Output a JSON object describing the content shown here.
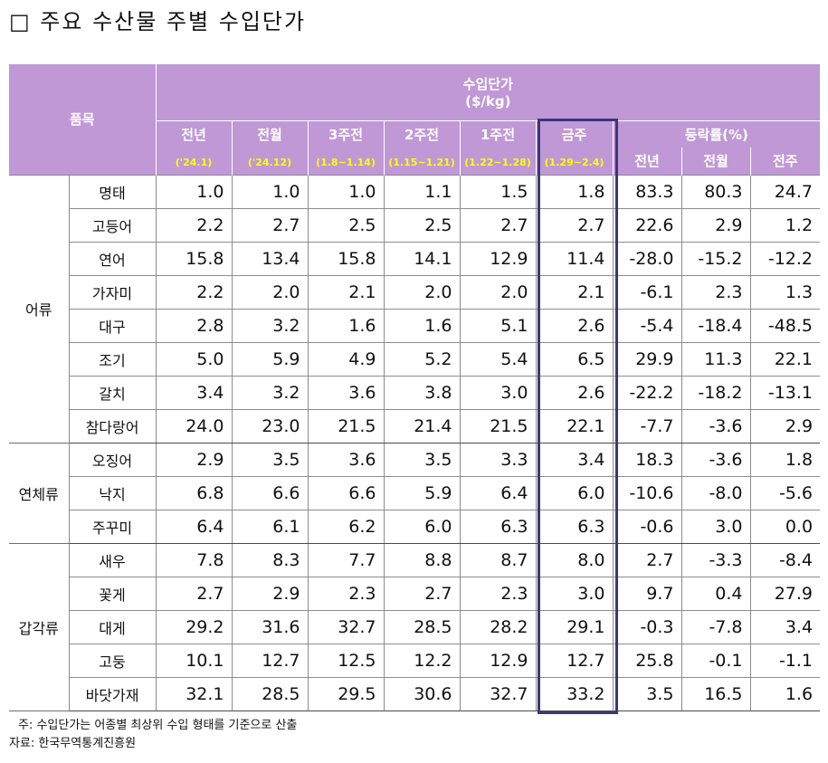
{
  "title": "□ 주요 수산물 주별 수입단가",
  "header": {
    "item": "품목",
    "price_group": "수입단가",
    "price_unit": "($/kg)",
    "cols": [
      {
        "label": "전년",
        "period": "('24.1)"
      },
      {
        "label": "전월",
        "period": "('24.12)"
      },
      {
        "label": "3주전",
        "period": "(1.8~1.14)"
      },
      {
        "label": "2주전",
        "period": "(1.15~1.21)"
      },
      {
        "label": "1주전",
        "period": "(1.22~1.28)"
      },
      {
        "label": "금주",
        "period": "(1.29~2.4)"
      }
    ],
    "change_group": "등락률(%)",
    "change_cols": [
      "전년",
      "전월",
      "전주"
    ]
  },
  "groups": [
    {
      "name": "어류",
      "rows": [
        {
          "item": "명태",
          "values": [
            "1.0",
            "1.0",
            "1.0",
            "1.1",
            "1.5",
            "1.8",
            "83.3",
            "80.3",
            "24.7"
          ]
        },
        {
          "item": "고등어",
          "values": [
            "2.2",
            "2.7",
            "2.5",
            "2.5",
            "2.7",
            "2.7",
            "22.6",
            "2.9",
            "1.2"
          ]
        },
        {
          "item": "연어",
          "values": [
            "15.8",
            "13.4",
            "15.8",
            "14.1",
            "12.9",
            "11.4",
            "-28.0",
            "-15.2",
            "-12.2"
          ]
        },
        {
          "item": "가자미",
          "values": [
            "2.2",
            "2.0",
            "2.1",
            "2.0",
            "2.0",
            "2.1",
            "-6.1",
            "2.3",
            "1.3"
          ]
        },
        {
          "item": "대구",
          "values": [
            "2.8",
            "3.2",
            "1.6",
            "1.6",
            "5.1",
            "2.6",
            "-5.4",
            "-18.4",
            "-48.5"
          ]
        },
        {
          "item": "조기",
          "values": [
            "5.0",
            "5.9",
            "4.9",
            "5.2",
            "5.4",
            "6.5",
            "29.9",
            "11.3",
            "22.1"
          ]
        },
        {
          "item": "갈치",
          "values": [
            "3.4",
            "3.2",
            "3.6",
            "3.8",
            "3.0",
            "2.6",
            "-22.2",
            "-18.2",
            "-13.1"
          ]
        },
        {
          "item": "참다랑어",
          "values": [
            "24.0",
            "23.0",
            "21.5",
            "21.4",
            "21.5",
            "22.1",
            "-7.7",
            "-3.6",
            "2.9"
          ]
        }
      ]
    },
    {
      "name": "연체류",
      "rows": [
        {
          "item": "오징어",
          "values": [
            "2.9",
            "3.5",
            "3.6",
            "3.5",
            "3.3",
            "3.4",
            "18.3",
            "-3.6",
            "1.8"
          ]
        },
        {
          "item": "낙지",
          "values": [
            "6.8",
            "6.6",
            "6.6",
            "5.9",
            "6.4",
            "6.0",
            "-10.6",
            "-8.0",
            "-5.6"
          ]
        },
        {
          "item": "주꾸미",
          "values": [
            "6.4",
            "6.1",
            "6.2",
            "6.0",
            "6.3",
            "6.3",
            "-0.6",
            "3.0",
            "0.0"
          ]
        }
      ]
    },
    {
      "name": "갑각류",
      "rows": [
        {
          "item": "새우",
          "values": [
            "7.8",
            "8.3",
            "7.7",
            "8.8",
            "8.7",
            "8.0",
            "2.7",
            "-3.3",
            "-8.4"
          ]
        },
        {
          "item": "꽃게",
          "values": [
            "2.7",
            "2.9",
            "2.3",
            "2.7",
            "2.3",
            "3.0",
            "9.7",
            "0.4",
            "27.9"
          ]
        },
        {
          "item": "대게",
          "values": [
            "29.2",
            "31.6",
            "32.7",
            "28.5",
            "28.2",
            "29.1",
            "-0.3",
            "-7.8",
            "3.4"
          ]
        },
        {
          "item": "고둥",
          "values": [
            "10.1",
            "12.7",
            "12.5",
            "12.2",
            "12.9",
            "12.7",
            "25.8",
            "-0.1",
            "-1.1"
          ]
        },
        {
          "item": "바닷가재",
          "values": [
            "32.1",
            "28.5",
            "29.5",
            "30.6",
            "32.7",
            "33.2",
            "3.5",
            "16.5",
            "1.6"
          ]
        }
      ]
    }
  ],
  "notes": {
    "note": "주: 수입단가는 어종별 최상위 수입 형태를 기준으로 산출",
    "source": "자료: 한국무역통계진흥원"
  }
}
